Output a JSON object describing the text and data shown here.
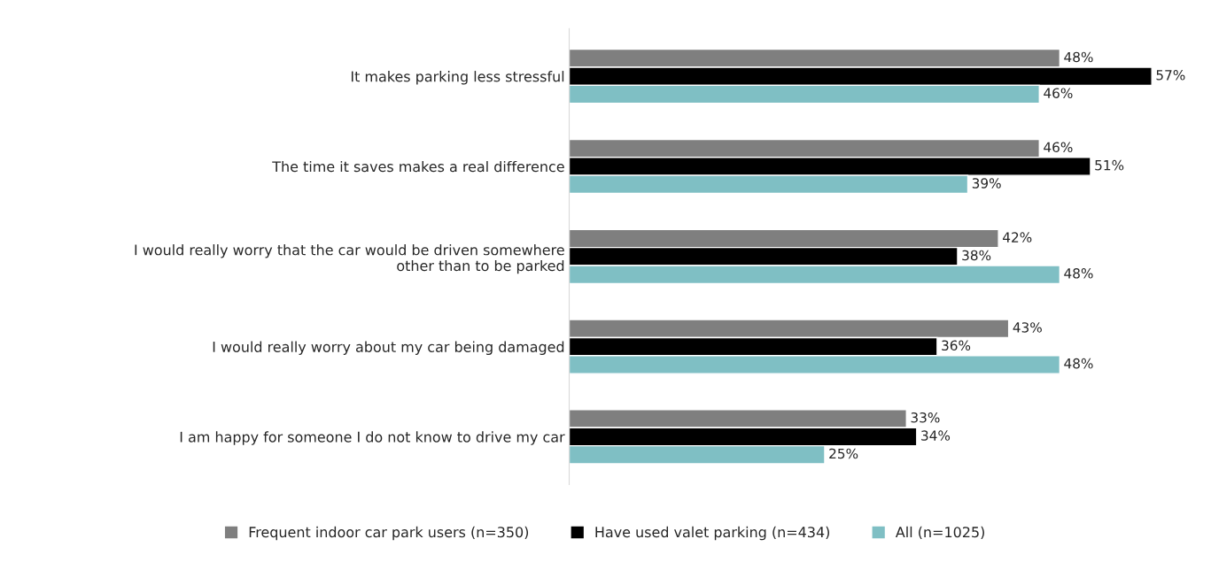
{
  "chart_data": {
    "type": "bar",
    "orientation": "horizontal",
    "categories": [
      "It makes parking less stressful",
      "The time it saves makes a real difference",
      "I would really worry that the car would be driven somewhere\nother than to be parked",
      "I would really worry about my car being damaged",
      "I am happy for someone I do not know to drive my car"
    ],
    "series": [
      {
        "name": "Frequent indoor car park users (n=350)",
        "color": "#7f7f7f",
        "values": [
          48,
          46,
          42,
          43,
          33
        ],
        "value_labels": [
          "48%",
          "46%",
          "42%",
          "43%",
          "33%"
        ]
      },
      {
        "name": "Have used valet parking (n=434)",
        "color": "#000000",
        "values": [
          57,
          51,
          38,
          36,
          34
        ],
        "value_labels": [
          "57%",
          "51%",
          "38%",
          "36%",
          "34%"
        ]
      },
      {
        "name": "All (n=1025)",
        "color": "#7fbfc4",
        "values": [
          46,
          39,
          48,
          48,
          25
        ],
        "value_labels": [
          "46%",
          "39%",
          "48%",
          "48%",
          "25%"
        ]
      }
    ],
    "legend": "bottom",
    "grid": false,
    "tick_labels": "y"
  }
}
